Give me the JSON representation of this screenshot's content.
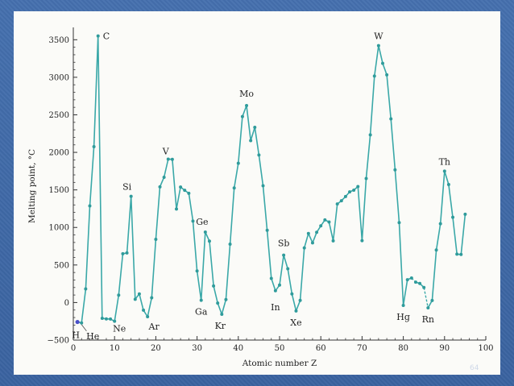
{
  "page": {
    "number": "64"
  },
  "chart_data": {
    "type": "line",
    "title": "",
    "xlabel": "Atomic number Z",
    "ylabel": "Melting point, °C",
    "xlim": [
      0,
      100
    ],
    "ylim": [
      -500,
      3600
    ],
    "xticks": [
      0,
      10,
      20,
      30,
      40,
      50,
      60,
      70,
      80,
      90,
      100
    ],
    "yticks": [
      -500,
      0,
      500,
      1000,
      1500,
      2000,
      2500,
      3000,
      3500
    ],
    "grid": false,
    "colors": {
      "line": "#3aa8a8",
      "marker": "#2f9b9b",
      "hydrogen_marker": "#4a4fc8",
      "axis": "#333333"
    },
    "series": [
      {
        "segments": [
          [
            [
              1,
              -259
            ],
            [
              2,
              -272
            ],
            [
              3,
              181
            ],
            [
              4,
              1287
            ],
            [
              5,
              2076
            ],
            [
              6,
              3550
            ],
            [
              7,
              -210
            ],
            [
              8,
              -218
            ],
            [
              9,
              -220
            ],
            [
              10,
              -249
            ],
            [
              11,
              98
            ],
            [
              12,
              650
            ],
            [
              13,
              660
            ],
            [
              14,
              1414
            ],
            [
              15,
              44
            ],
            [
              16,
              115
            ],
            [
              17,
              -102
            ],
            [
              18,
              -189
            ],
            [
              19,
              63
            ],
            [
              20,
              842
            ],
            [
              21,
              1541
            ],
            [
              22,
              1668
            ],
            [
              23,
              1910
            ],
            [
              24,
              1907
            ],
            [
              25,
              1246
            ],
            [
              26,
              1538
            ],
            [
              27,
              1495
            ],
            [
              28,
              1455
            ],
            [
              29,
              1085
            ],
            [
              30,
              420
            ],
            [
              31,
              30
            ],
            [
              32,
              938
            ],
            [
              33,
              817
            ],
            [
              34,
              221
            ],
            [
              35,
              -7
            ],
            [
              36,
              -157
            ],
            [
              37,
              39
            ],
            [
              38,
              777
            ],
            [
              39,
              1526
            ],
            [
              40,
              1855
            ],
            [
              41,
              2477
            ],
            [
              42,
              2623
            ],
            [
              43,
              2157
            ],
            [
              44,
              2334
            ],
            [
              45,
              1964
            ],
            [
              46,
              1555
            ],
            [
              47,
              962
            ],
            [
              48,
              321
            ],
            [
              49,
              157
            ],
            [
              50,
              232
            ],
            [
              51,
              631
            ],
            [
              52,
              450
            ],
            [
              53,
              114
            ],
            [
              54,
              -112
            ],
            [
              55,
              28
            ],
            [
              56,
              727
            ],
            [
              57,
              920
            ],
            [
              58,
              795
            ],
            [
              59,
              935
            ],
            [
              60,
              1021
            ],
            [
              61,
              1100
            ],
            [
              62,
              1072
            ],
            [
              63,
              822
            ],
            [
              64,
              1313
            ],
            [
              65,
              1356
            ],
            [
              66,
              1412
            ],
            [
              67,
              1474
            ],
            [
              68,
              1497
            ],
            [
              69,
              1545
            ],
            [
              70,
              824
            ],
            [
              71,
              1652
            ],
            [
              72,
              2233
            ],
            [
              73,
              3017
            ],
            [
              74,
              3422
            ],
            [
              75,
              3186
            ],
            [
              76,
              3033
            ],
            [
              77,
              2446
            ],
            [
              78,
              1768
            ],
            [
              79,
              1064
            ],
            [
              80,
              -39
            ],
            [
              81,
              304
            ],
            [
              82,
              327
            ]
          ],
          [
            [
              83,
              271
            ],
            [
              84,
              254
            ],
            [
              85,
              200
            ]
          ],
          [
            [
              86,
              -71
            ],
            [
              87,
              27
            ],
            [
              88,
              700
            ],
            [
              89,
              1050
            ],
            [
              90,
              1750
            ],
            [
              91,
              1572
            ],
            [
              92,
              1135
            ],
            [
              93,
              644
            ],
            [
              94,
              640
            ],
            [
              95,
              1176
            ]
          ]
        ]
      }
    ],
    "annotations": [
      "C",
      "H",
      "He",
      "Ne",
      "Si",
      "Ar",
      "V",
      "Ga",
      "Ge",
      "Kr",
      "Mo",
      "In",
      "Sb",
      "Xe",
      "W",
      "Hg",
      "Rn",
      "Th"
    ]
  }
}
